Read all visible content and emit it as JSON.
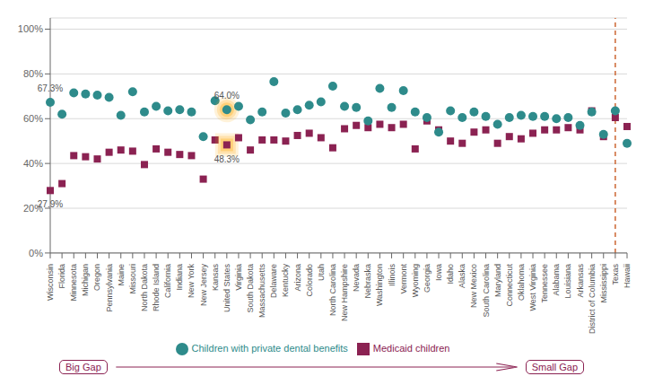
{
  "chart_data": {
    "type": "scatter",
    "categories": [
      "Wisconsin",
      "Florida",
      "Minnesota",
      "Michigan",
      "Oregon",
      "Pennsylvania",
      "Maine",
      "Missouri",
      "North Dakota",
      "Rhode Island",
      "California",
      "Indiana",
      "New York",
      "New Jersey",
      "Kansas",
      "United States",
      "Virginia",
      "South Dakota",
      "Massachusetts",
      "Delaware",
      "Kentucky",
      "Arizona",
      "Colorado",
      "Utah",
      "North Carolina",
      "New Hampshire",
      "Nevada",
      "Nebraska",
      "Washington",
      "Illinois",
      "Vermont",
      "Wyoming",
      "Georgia",
      "Iowa",
      "Idaho",
      "Alaska",
      "New Mexico",
      "South Carolina",
      "Maryland",
      "Connecticut",
      "Oklahoma",
      "West Virginia",
      "Tennessee",
      "Alabama",
      "Louisiana",
      "Arkansas",
      "District of Columbia",
      "Mississippi",
      "Texas",
      "Hawaii"
    ],
    "series": [
      {
        "name": "Medicaid children",
        "color": "#8B2252",
        "marker": "square",
        "values": [
          27.9,
          31.0,
          43.5,
          43.0,
          42.0,
          45.0,
          46.0,
          45.5,
          39.5,
          46.5,
          45.0,
          44.0,
          43.5,
          33.0,
          50.5,
          48.3,
          51.5,
          46.0,
          50.5,
          50.5,
          50.0,
          52.5,
          53.5,
          51.5,
          47.0,
          55.5,
          57.0,
          56.0,
          57.5,
          56.0,
          57.5,
          46.5,
          59.0,
          55.0,
          50.0,
          49.0,
          54.0,
          55.0,
          49.0,
          52.0,
          51.0,
          53.5,
          55.0,
          55.0,
          56.0,
          55.0,
          63.5,
          52.0,
          60.5,
          56.5
        ]
      },
      {
        "name": "Children with private dental benefits",
        "color": "#2E8B8B",
        "marker": "circle",
        "values": [
          67.3,
          62.0,
          71.5,
          71.0,
          70.5,
          69.5,
          61.5,
          72.0,
          63.0,
          65.5,
          63.5,
          64.0,
          63.0,
          52.0,
          68.0,
          64.0,
          65.5,
          59.5,
          63.0,
          76.5,
          62.5,
          64.0,
          66.0,
          67.5,
          74.5,
          65.5,
          65.0,
          59.0,
          73.5,
          65.0,
          72.5,
          63.0,
          60.5,
          54.0,
          63.5,
          60.5,
          63.0,
          61.0,
          57.5,
          60.5,
          61.5,
          61.0,
          61.0,
          60.0,
          60.5,
          57.0,
          63.0,
          53.0,
          63.5,
          49.0
        ]
      }
    ],
    "ylim": [
      0,
      105
    ],
    "yticks": [
      {
        "value": 0,
        "label": "0%"
      },
      {
        "value": 20,
        "label": "20%"
      },
      {
        "value": 40,
        "label": "40%"
      },
      {
        "value": 60,
        "label": "60%"
      },
      {
        "value": 80,
        "label": "80%"
      },
      {
        "value": 100,
        "label": "100%"
      }
    ],
    "grid": true,
    "legend": "bottom",
    "annotations": [
      {
        "text": "27.9%",
        "category": "Wisconsin",
        "series": "Medicaid children"
      },
      {
        "text": "67.3%",
        "category": "Wisconsin",
        "series": "Children with private dental benefits"
      },
      {
        "text": "64.0%",
        "category": "United States",
        "series": "Children with private dental benefits"
      },
      {
        "text": "48.3%",
        "category": "United States",
        "series": "Medicaid children"
      },
      {
        "text": "Big Gap",
        "color": "#8B2252"
      },
      {
        "text": "Small Gap",
        "color": "#8B2252"
      }
    ],
    "highlight": {
      "category": "United States",
      "color": "orange"
    },
    "reference_line": {
      "category": "Texas",
      "color": "#CC6633",
      "line_style": "dashed"
    }
  }
}
